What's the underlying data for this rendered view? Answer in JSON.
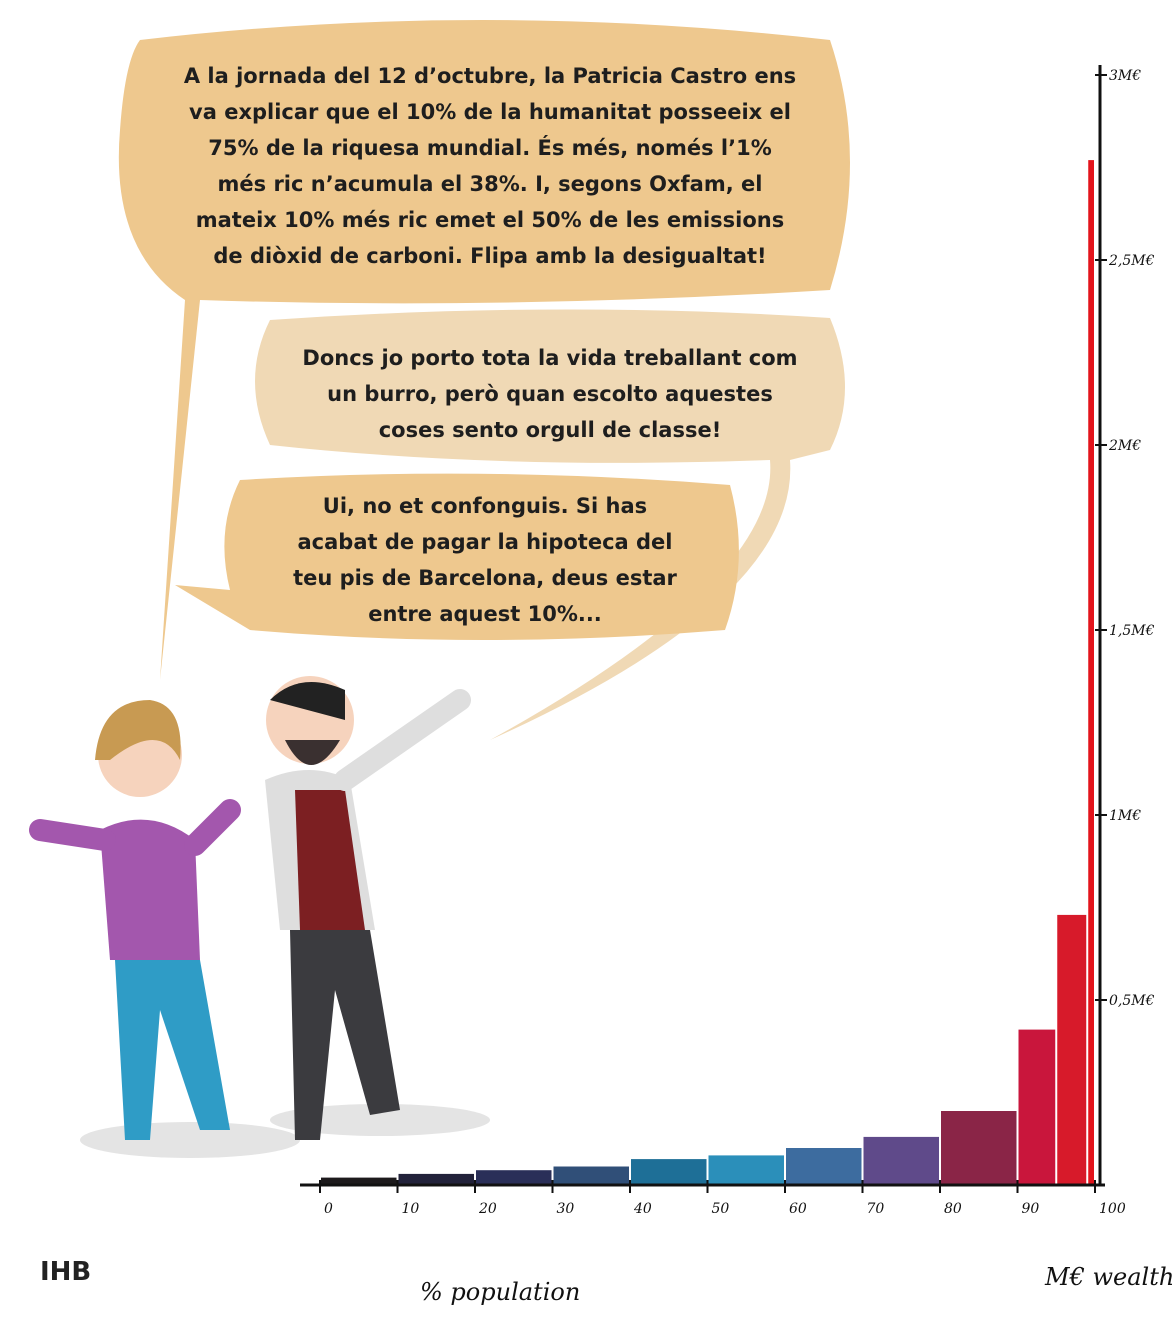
{
  "annotations": [
    {
      "lines": [
        "A la jornada del 12 d’octubre, la Patricia Castro ens",
        "va explicar que el 10% de la humanitat posseeix el",
        "75% de la riquesa mundial. És més, només l’1%",
        "més ric n’acumula el 38%. I, segons Oxfam, el",
        "mateix 10% més ric emet el 50% de les emissions",
        "de diòxid de carboni. Flipa amb la desigualtat!"
      ]
    },
    {
      "lines": [
        "Doncs jo porto tota la vida treballant com",
        "un burro, però quan escolto aquestes",
        "coses sento orgull de classe!"
      ]
    },
    {
      "lines": [
        "Ui, no et confonguis. Si has",
        "acabat de pagar la hipoteca del",
        "teu pis de Barcelona, deus estar",
        "entre aquest 10%..."
      ]
    }
  ],
  "signature": "IHB",
  "chart_data": {
    "type": "histogram",
    "xlabel": "% population",
    "ylabel": "M€ wealth",
    "bins": [
      0,
      10,
      20,
      30,
      40,
      50,
      60,
      70,
      80,
      90,
      95,
      99,
      100
    ],
    "values": [
      0.02,
      0.03,
      0.04,
      0.05,
      0.07,
      0.08,
      0.1,
      0.13,
      0.2,
      0.42,
      0.73,
      2.77
    ],
    "colors": [
      "#1d1a1c",
      "#22223a",
      "#2a2f58",
      "#304f78",
      "#1e6f97",
      "#2b8fba",
      "#3d6c9f",
      "#5f4a8a",
      "#8a2547",
      "#c9163c",
      "#d71a2a",
      "#e3141c"
    ],
    "xlim": [
      0,
      100
    ],
    "xticks": [
      0,
      10,
      20,
      30,
      40,
      50,
      60,
      70,
      80,
      90,
      100
    ],
    "ylim": [
      0,
      3
    ],
    "yticks": [
      {
        "value": 0.5,
        "label": "0,5M€"
      },
      {
        "value": 1,
        "label": "1M€"
      },
      {
        "value": 1.5,
        "label": "1,5M€"
      },
      {
        "value": 2,
        "label": "2M€"
      },
      {
        "value": 2.5,
        "label": "2,5M€"
      },
      {
        "value": 3,
        "label": "3M€"
      }
    ]
  }
}
